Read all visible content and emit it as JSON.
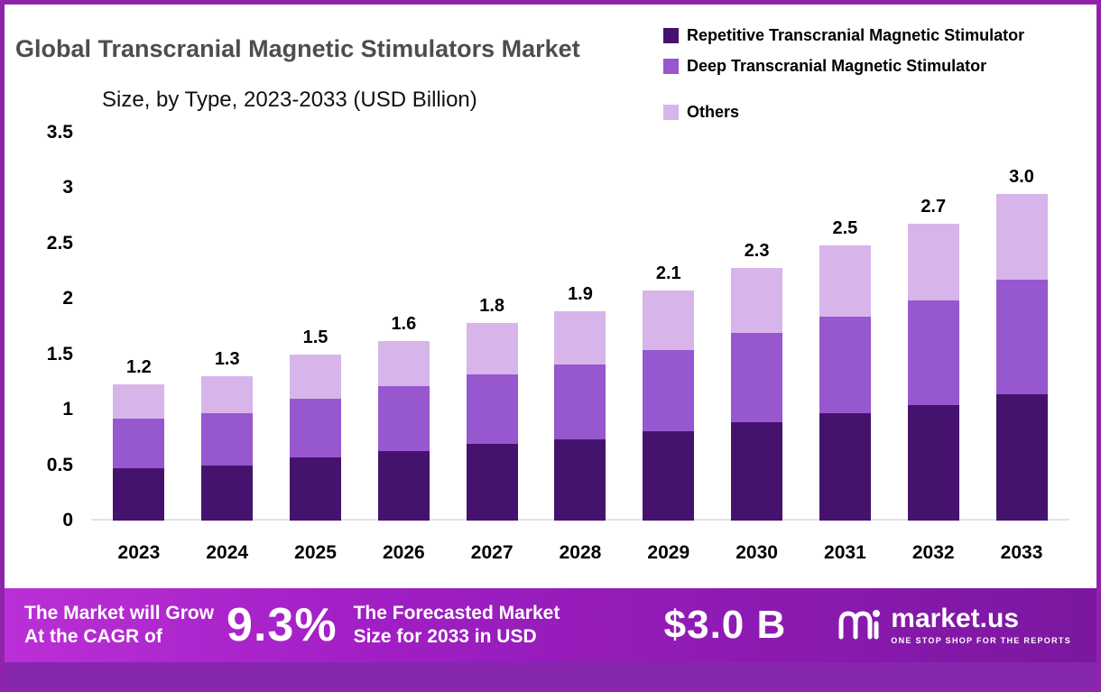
{
  "header": {
    "title": "Global Transcranial Magnetic Stimulators Market",
    "subtitle": "Size, by Type, 2023-2033 (USD Billion)"
  },
  "legend": [
    {
      "label": "Repetitive Transcranial Magnetic Stimulator",
      "color": "#45136e"
    },
    {
      "label": "Deep Transcranial Magnetic Stimulator",
      "color": "#9657cf"
    },
    {
      "label": "Others",
      "color": "#d7b5ea"
    }
  ],
  "chart_data": {
    "type": "bar",
    "stacked": true,
    "title": "Global Transcranial Magnetic Stimulators Market Size, by Type, 2023-2033 (USD Billion)",
    "categories": [
      "2023",
      "2024",
      "2025",
      "2026",
      "2027",
      "2028",
      "2029",
      "2030",
      "2031",
      "2032",
      "2033"
    ],
    "series": [
      {
        "name": "Repetitive Transcranial Magnetic Stimulator",
        "color": "#45136e",
        "values": [
          0.47,
          0.5,
          0.57,
          0.63,
          0.69,
          0.73,
          0.81,
          0.89,
          0.97,
          1.04,
          1.14
        ]
      },
      {
        "name": "Deep Transcranial Magnetic Stimulator",
        "color": "#9657cf",
        "values": [
          0.45,
          0.47,
          0.53,
          0.58,
          0.63,
          0.68,
          0.73,
          0.8,
          0.87,
          0.95,
          1.03
        ]
      },
      {
        "name": "Others",
        "color": "#d7b5ea",
        "values": [
          0.31,
          0.33,
          0.4,
          0.41,
          0.46,
          0.48,
          0.54,
          0.59,
          0.64,
          0.69,
          0.78
        ]
      }
    ],
    "totals": [
      "1.2",
      "1.3",
      "1.5",
      "1.6",
      "1.8",
      "1.9",
      "2.1",
      "2.3",
      "2.5",
      "2.7",
      "3.0"
    ],
    "y_ticks": [
      "3.5",
      "3",
      "2.5",
      "2",
      "1.5",
      "1",
      "0.5",
      "0"
    ],
    "ylim": [
      0,
      3.5
    ],
    "xlabel": "",
    "ylabel": "",
    "grid": false,
    "legend_position": "top-right"
  },
  "footer": {
    "cagr_label": "The Market will Grow\nAt the CAGR of",
    "cagr_value": "9.3%",
    "forecast_label": "The Forecasted Market\nSize for 2033 in USD",
    "forecast_value": "$3.0 B",
    "brand": "market.us",
    "brand_tagline": "ONE STOP SHOP FOR THE REPORTS"
  }
}
